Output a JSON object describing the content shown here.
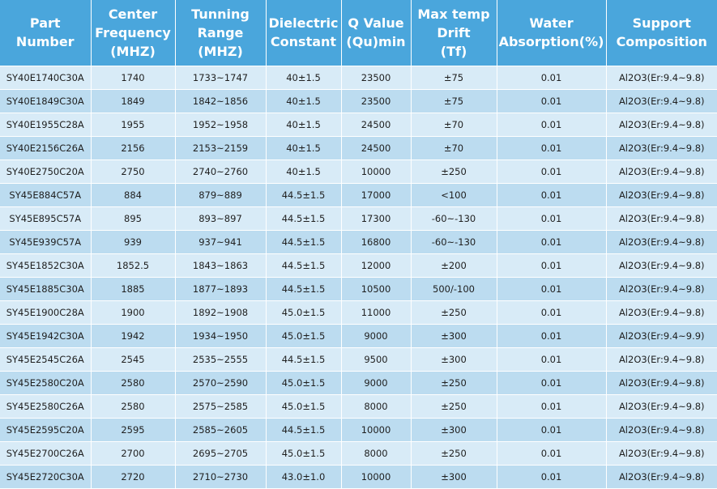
{
  "table": {
    "headers": [
      "Part\nNumber",
      "Center\nFrequency\n(MHZ)",
      "Tunning\nRange\n(MHZ)",
      "Dielectric\nConstant",
      "Q Value\n(Qu)min",
      "Max temp\nDrift\n(Tf)",
      "Water\nAbsorption(%)",
      "Support\nComposition"
    ],
    "rows": [
      [
        "SY40E1740C30A",
        "1740",
        "1733~1747",
        "40±1.5",
        "23500",
        "±75",
        "0.01",
        "Al2O3(Er:9.4~9.8)"
      ],
      [
        "SY40E1849C30A",
        "1849",
        "1842~1856",
        "40±1.5",
        "23500",
        "±75",
        "0.01",
        "Al2O3(Er:9.4~9.8)"
      ],
      [
        "SY40E1955C28A",
        "1955",
        "1952~1958",
        "40±1.5",
        "24500",
        "±70",
        "0.01",
        "Al2O3(Er:9.4~9.8)"
      ],
      [
        "SY40E2156C26A",
        "2156",
        "2153~2159",
        "40±1.5",
        "24500",
        "±70",
        "0.01",
        "Al2O3(Er:9.4~9.8)"
      ],
      [
        "SY40E2750C20A",
        "2750",
        "2740~2760",
        "40±1.5",
        "10000",
        "±250",
        "0.01",
        "Al2O3(Er:9.4~9.8)"
      ],
      [
        "SY45E884C57A",
        "884",
        "879~889",
        "44.5±1.5",
        "17000",
        "<100",
        "0.01",
        "Al2O3(Er:9.4~9.8)"
      ],
      [
        "SY45E895C57A",
        "895",
        "893~897",
        "44.5±1.5",
        "17300",
        "-60~-130",
        "0.01",
        "Al2O3(Er:9.4~9.8)"
      ],
      [
        "SY45E939C57A",
        "939",
        "937~941",
        "44.5±1.5",
        "16800",
        "-60~-130",
        "0.01",
        "Al2O3(Er:9.4~9.8)"
      ],
      [
        "SY45E1852C30A",
        "1852.5",
        "1843~1863",
        "44.5±1.5",
        "12000",
        "±200",
        "0.01",
        "Al2O3(Er:9.4~9.8)"
      ],
      [
        "SY45E1885C30A",
        "1885",
        "1877~1893",
        "44.5±1.5",
        "10500",
        "500/-100",
        "0.01",
        "Al2O3(Er:9.4~9.8)"
      ],
      [
        "SY45E1900C28A",
        "1900",
        "1892~1908",
        "45.0±1.5",
        "11000",
        "±250",
        "0.01",
        "Al2O3(Er:9.4~9.8)"
      ],
      [
        "SY45E1942C30A",
        "1942",
        "1934~1950",
        "45.0±1.5",
        "9000",
        "±300",
        "0.01",
        "Al2O3(Er:9.4~9.9)"
      ],
      [
        "SY45E2545C26A",
        "2545",
        "2535~2555",
        "44.5±1.5",
        "9500",
        "±300",
        "0.01",
        "Al2O3(Er:9.4~9.8)"
      ],
      [
        "SY45E2580C20A",
        "2580",
        "2570~2590",
        "45.0±1.5",
        "9000",
        "±250",
        "0.01",
        "Al2O3(Er:9.4~9.8)"
      ],
      [
        "SY45E2580C26A",
        "2580",
        "2575~2585",
        "45.0±1.5",
        "8000",
        "±250",
        "0.01",
        "Al2O3(Er:9.4~9.8)"
      ],
      [
        "SY45E2595C20A",
        "2595",
        "2585~2605",
        "44.5±1.5",
        "10000",
        "±300",
        "0.01",
        "Al2O3(Er:9.4~9.8)"
      ],
      [
        "SY45E2700C26A",
        "2700",
        "2695~2705",
        "45.0±1.5",
        "8000",
        "±250",
        "0.01",
        "Al2O3(Er:9.4~9.8)"
      ],
      [
        "SY45E2720C30A",
        "2720",
        "2710~2730",
        "43.0±1.0",
        "10000",
        "±300",
        "0.01",
        "Al2O3(Er:9.4~9.8)"
      ]
    ]
  }
}
